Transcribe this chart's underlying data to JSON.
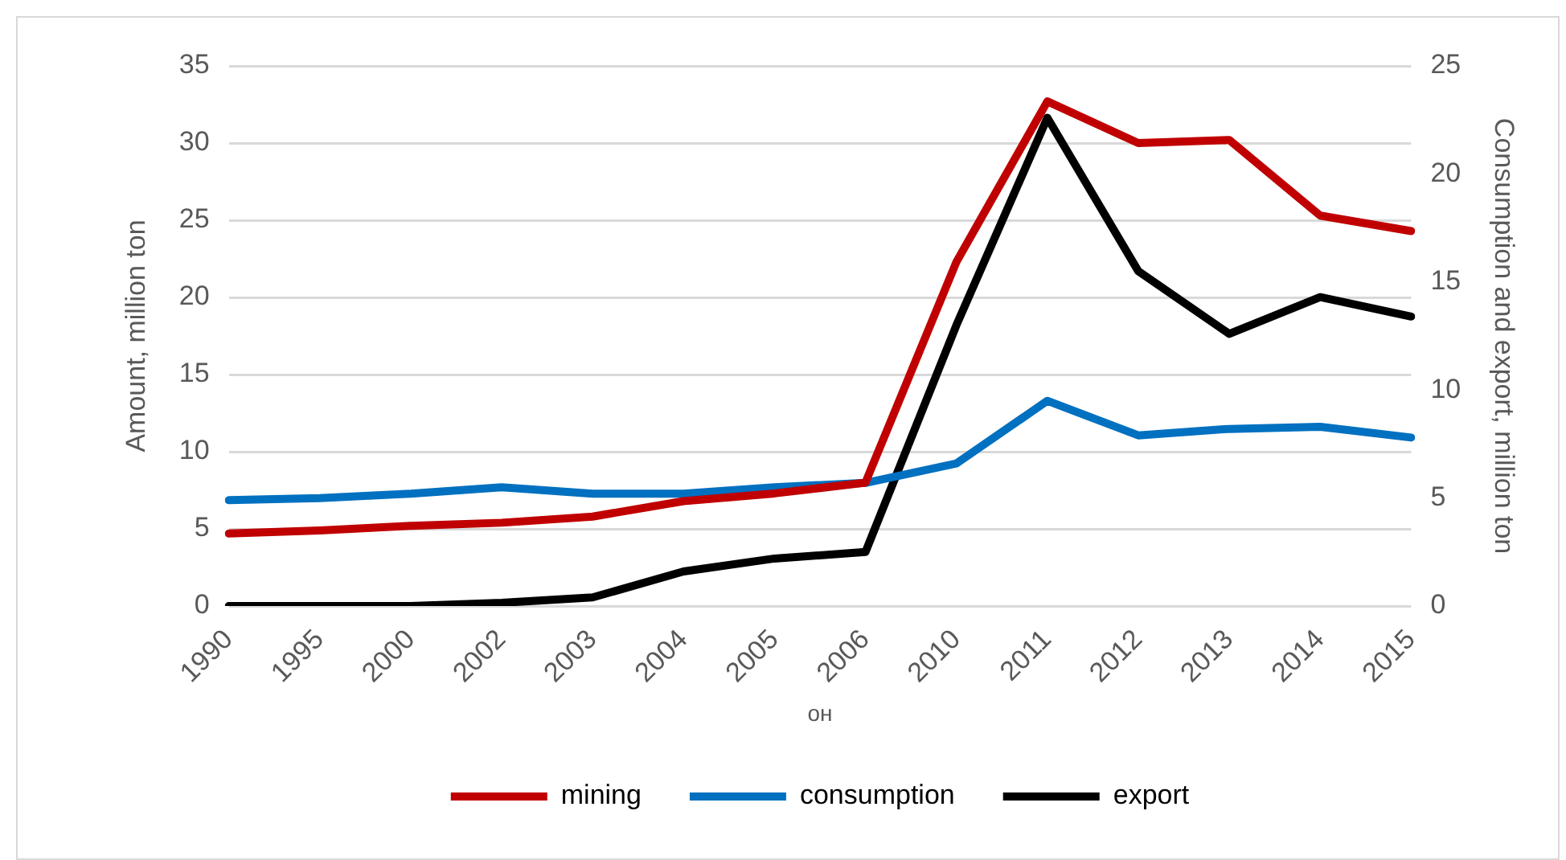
{
  "chart_data": {
    "type": "line",
    "xlabel": "он",
    "ylabel": "Amount, million ton",
    "y2label": "Consumption and export, million ton",
    "categories": [
      "1990",
      "1995",
      "2000",
      "2002",
      "2003",
      "2004",
      "2005",
      "2006",
      "2010",
      "2011",
      "2012",
      "2013",
      "2014",
      "2015"
    ],
    "series": [
      {
        "name": "mining",
        "color": "#c00000",
        "values": [
          4.7,
          4.9,
          5.2,
          5.4,
          5.8,
          6.8,
          7.3,
          8.0,
          22.3,
          32.7,
          30.0,
          30.2,
          25.3,
          24.3
        ]
      },
      {
        "name": "consumption",
        "color": "#0070c0",
        "axis": "y2",
        "values": [
          4.9,
          5.0,
          5.2,
          5.5,
          5.2,
          5.2,
          5.5,
          5.7,
          6.6,
          9.5,
          7.9,
          8.2,
          8.3,
          7.8
        ]
      },
      {
        "name": "export",
        "color": "#000000",
        "axis": "y2",
        "values": [
          0,
          0,
          0,
          0.15,
          0.4,
          1.6,
          2.2,
          2.5,
          13.0,
          22.6,
          15.5,
          12.6,
          14.3,
          13.4
        ]
      }
    ],
    "ylim": [
      0,
      35
    ],
    "yticks": [
      0,
      5,
      10,
      15,
      20,
      25,
      30,
      35
    ],
    "y2lim": [
      0,
      25
    ],
    "y2ticks": [
      0,
      5,
      10,
      15,
      20,
      25
    ],
    "grid": "y",
    "legend": "bottom",
    "marker": "none",
    "line_style": "solid"
  }
}
